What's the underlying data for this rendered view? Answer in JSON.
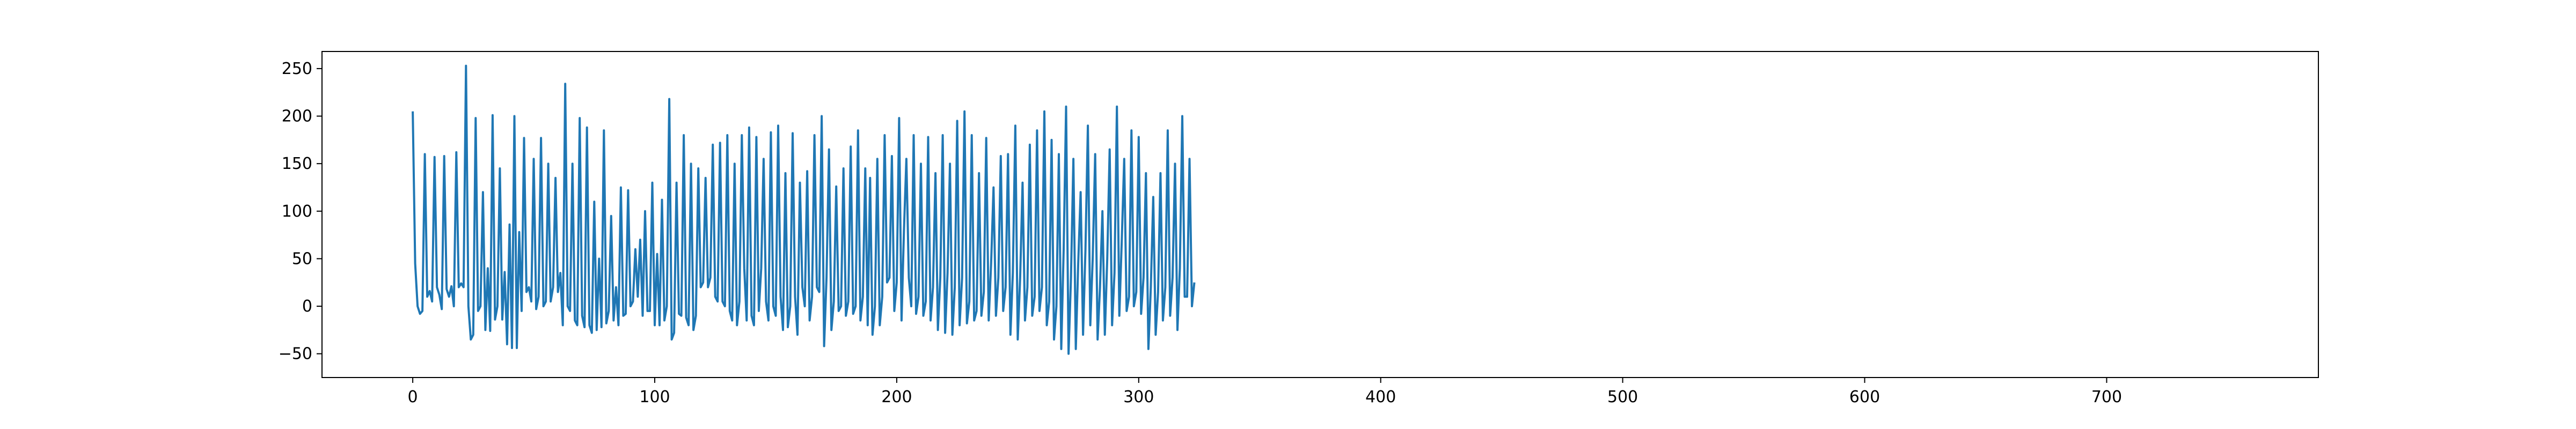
{
  "chart_data": {
    "type": "line",
    "title": "",
    "xlabel": "",
    "ylabel": "",
    "xlim": [
      -37.5,
      787.5
    ],
    "ylim": [
      -75,
      268
    ],
    "x_ticks": [
      0,
      100,
      200,
      300,
      400,
      500,
      600,
      700
    ],
    "y_ticks": [
      -50,
      0,
      50,
      100,
      150,
      200,
      250
    ],
    "x_tick_labels": [
      "0",
      "100",
      "200",
      "300",
      "400",
      "500",
      "600",
      "700"
    ],
    "y_tick_labels": [
      "−50",
      "0",
      "50",
      "100",
      "150",
      "200",
      "250"
    ],
    "grid": false,
    "legend": "none",
    "series": [
      {
        "color": "#1f77b4",
        "points": [
          [
            0,
            205
          ],
          [
            1,
            45
          ],
          [
            2,
            0
          ],
          [
            3,
            -8
          ],
          [
            4,
            -5
          ],
          [
            5,
            160
          ],
          [
            6,
            10
          ],
          [
            7,
            16
          ],
          [
            8,
            5
          ],
          [
            9,
            157
          ],
          [
            10,
            20
          ],
          [
            11,
            12
          ],
          [
            12,
            -3
          ],
          [
            13,
            158
          ],
          [
            14,
            18
          ],
          [
            15,
            10
          ],
          [
            16,
            21
          ],
          [
            17,
            0
          ],
          [
            18,
            162
          ],
          [
            19,
            20
          ],
          [
            20,
            24
          ],
          [
            21,
            20
          ],
          [
            22,
            253
          ],
          [
            23,
            0
          ],
          [
            24,
            -35
          ],
          [
            25,
            -30
          ],
          [
            26,
            198
          ],
          [
            27,
            -5
          ],
          [
            28,
            0
          ],
          [
            29,
            120
          ],
          [
            30,
            -25
          ],
          [
            31,
            40
          ],
          [
            32,
            -26
          ],
          [
            33,
            201
          ],
          [
            34,
            -14
          ],
          [
            35,
            0
          ],
          [
            36,
            145
          ],
          [
            37,
            -14
          ],
          [
            38,
            36
          ],
          [
            39,
            -40
          ],
          [
            40,
            86
          ],
          [
            41,
            -44
          ],
          [
            42,
            200
          ],
          [
            43,
            -44
          ],
          [
            44,
            78
          ],
          [
            45,
            -5
          ],
          [
            46,
            177
          ],
          [
            47,
            15
          ],
          [
            48,
            20
          ],
          [
            49,
            5
          ],
          [
            50,
            155
          ],
          [
            51,
            -3
          ],
          [
            52,
            10
          ],
          [
            53,
            177
          ],
          [
            54,
            0
          ],
          [
            55,
            5
          ],
          [
            56,
            150
          ],
          [
            57,
            5
          ],
          [
            58,
            20
          ],
          [
            59,
            135
          ],
          [
            60,
            15
          ],
          [
            61,
            35
          ],
          [
            62,
            -20
          ],
          [
            63,
            234
          ],
          [
            64,
            0
          ],
          [
            65,
            -5
          ],
          [
            66,
            150
          ],
          [
            67,
            -15
          ],
          [
            68,
            -20
          ],
          [
            69,
            198
          ],
          [
            70,
            -10
          ],
          [
            71,
            -22
          ],
          [
            72,
            188
          ],
          [
            73,
            -20
          ],
          [
            74,
            -28
          ],
          [
            75,
            110
          ],
          [
            76,
            -25
          ],
          [
            77,
            50
          ],
          [
            78,
            -22
          ],
          [
            79,
            185
          ],
          [
            80,
            -18
          ],
          [
            81,
            -5
          ],
          [
            82,
            95
          ],
          [
            83,
            -15
          ],
          [
            84,
            20
          ],
          [
            85,
            -20
          ],
          [
            86,
            125
          ],
          [
            87,
            -10
          ],
          [
            88,
            -8
          ],
          [
            89,
            122
          ],
          [
            90,
            0
          ],
          [
            91,
            5
          ],
          [
            92,
            60
          ],
          [
            93,
            10
          ],
          [
            94,
            70
          ],
          [
            95,
            -10
          ],
          [
            96,
            100
          ],
          [
            97,
            -5
          ],
          [
            98,
            -5
          ],
          [
            99,
            130
          ],
          [
            100,
            -20
          ],
          [
            101,
            55
          ],
          [
            102,
            -20
          ],
          [
            103,
            112
          ],
          [
            104,
            -15
          ],
          [
            105,
            0
          ],
          [
            106,
            218
          ],
          [
            107,
            -35
          ],
          [
            108,
            -28
          ],
          [
            109,
            130
          ],
          [
            110,
            -8
          ],
          [
            111,
            -10
          ],
          [
            112,
            180
          ],
          [
            113,
            -12
          ],
          [
            114,
            -20
          ],
          [
            115,
            150
          ],
          [
            116,
            -25
          ],
          [
            117,
            -10
          ],
          [
            118,
            145
          ],
          [
            119,
            20
          ],
          [
            120,
            25
          ],
          [
            121,
            135
          ],
          [
            122,
            20
          ],
          [
            123,
            30
          ],
          [
            124,
            170
          ],
          [
            125,
            10
          ],
          [
            126,
            5
          ],
          [
            127,
            172
          ],
          [
            128,
            5
          ],
          [
            129,
            0
          ],
          [
            130,
            180
          ],
          [
            131,
            -5
          ],
          [
            132,
            -15
          ],
          [
            133,
            150
          ],
          [
            134,
            -20
          ],
          [
            135,
            5
          ],
          [
            136,
            180
          ],
          [
            137,
            40
          ],
          [
            138,
            -15
          ],
          [
            139,
            188
          ],
          [
            140,
            -10
          ],
          [
            141,
            -20
          ],
          [
            142,
            178
          ],
          [
            143,
            -5
          ],
          [
            144,
            40
          ],
          [
            145,
            155
          ],
          [
            146,
            5
          ],
          [
            147,
            -15
          ],
          [
            148,
            183
          ],
          [
            149,
            0
          ],
          [
            150,
            -10
          ],
          [
            151,
            190
          ],
          [
            152,
            10
          ],
          [
            153,
            -25
          ],
          [
            154,
            140
          ],
          [
            155,
            -22
          ],
          [
            156,
            0
          ],
          [
            157,
            182
          ],
          [
            158,
            10
          ],
          [
            159,
            -30
          ],
          [
            160,
            130
          ],
          [
            161,
            20
          ],
          [
            162,
            0
          ],
          [
            163,
            142
          ],
          [
            164,
            -15
          ],
          [
            165,
            10
          ],
          [
            166,
            180
          ],
          [
            167,
            20
          ],
          [
            168,
            15
          ],
          [
            169,
            200
          ],
          [
            170,
            -42
          ],
          [
            171,
            30
          ],
          [
            172,
            165
          ],
          [
            173,
            -25
          ],
          [
            174,
            5
          ],
          [
            175,
            126
          ],
          [
            176,
            -5
          ],
          [
            177,
            0
          ],
          [
            178,
            145
          ],
          [
            179,
            -10
          ],
          [
            180,
            5
          ],
          [
            181,
            168
          ],
          [
            182,
            -8
          ],
          [
            183,
            0
          ],
          [
            184,
            185
          ],
          [
            185,
            -15
          ],
          [
            186,
            10
          ],
          [
            187,
            145
          ],
          [
            188,
            -20
          ],
          [
            189,
            135
          ],
          [
            190,
            -30
          ],
          [
            191,
            0
          ],
          [
            192,
            155
          ],
          [
            193,
            -20
          ],
          [
            194,
            10
          ],
          [
            195,
            180
          ],
          [
            196,
            25
          ],
          [
            197,
            30
          ],
          [
            198,
            158
          ],
          [
            199,
            -5
          ],
          [
            200,
            25
          ],
          [
            201,
            198
          ],
          [
            202,
            -15
          ],
          [
            203,
            80
          ],
          [
            204,
            155
          ],
          [
            205,
            30
          ],
          [
            206,
            0
          ],
          [
            207,
            180
          ],
          [
            208,
            -8
          ],
          [
            209,
            10
          ],
          [
            210,
            150
          ],
          [
            211,
            -10
          ],
          [
            212,
            5
          ],
          [
            213,
            178
          ],
          [
            214,
            -15
          ],
          [
            215,
            20
          ],
          [
            216,
            140
          ],
          [
            217,
            -25
          ],
          [
            218,
            30
          ],
          [
            219,
            180
          ],
          [
            220,
            -28
          ],
          [
            221,
            35
          ],
          [
            222,
            150
          ],
          [
            223,
            -30
          ],
          [
            224,
            20
          ],
          [
            225,
            195
          ],
          [
            226,
            -20
          ],
          [
            227,
            30
          ],
          [
            228,
            205
          ],
          [
            229,
            -18
          ],
          [
            230,
            5
          ],
          [
            231,
            180
          ],
          [
            232,
            -15
          ],
          [
            233,
            -5
          ],
          [
            234,
            140
          ],
          [
            235,
            -10
          ],
          [
            236,
            15
          ],
          [
            237,
            177
          ],
          [
            238,
            -15
          ],
          [
            239,
            45
          ],
          [
            240,
            125
          ],
          [
            241,
            -10
          ],
          [
            242,
            30
          ],
          [
            243,
            158
          ],
          [
            244,
            -5
          ],
          [
            245,
            20
          ],
          [
            246,
            160
          ],
          [
            247,
            -30
          ],
          [
            248,
            35
          ],
          [
            249,
            190
          ],
          [
            250,
            -35
          ],
          [
            251,
            30
          ],
          [
            252,
            130
          ],
          [
            253,
            -15
          ],
          [
            254,
            20
          ],
          [
            255,
            170
          ],
          [
            256,
            -10
          ],
          [
            257,
            10
          ],
          [
            258,
            185
          ],
          [
            259,
            -5
          ],
          [
            260,
            20
          ],
          [
            261,
            205
          ],
          [
            262,
            -20
          ],
          [
            263,
            5
          ],
          [
            264,
            175
          ],
          [
            265,
            -35
          ],
          [
            266,
            0
          ],
          [
            267,
            160
          ],
          [
            268,
            -45
          ],
          [
            269,
            60
          ],
          [
            270,
            210
          ],
          [
            271,
            -50
          ],
          [
            272,
            30
          ],
          [
            273,
            155
          ],
          [
            274,
            -45
          ],
          [
            275,
            45
          ],
          [
            276,
            120
          ],
          [
            277,
            -30
          ],
          [
            278,
            60
          ],
          [
            279,
            190
          ],
          [
            280,
            -20
          ],
          [
            281,
            50
          ],
          [
            282,
            160
          ],
          [
            283,
            -35
          ],
          [
            284,
            20
          ],
          [
            285,
            100
          ],
          [
            286,
            -30
          ],
          [
            287,
            50
          ],
          [
            288,
            165
          ],
          [
            289,
            -20
          ],
          [
            290,
            35
          ],
          [
            291,
            210
          ],
          [
            292,
            -10
          ],
          [
            293,
            70
          ],
          [
            294,
            155
          ],
          [
            295,
            -5
          ],
          [
            296,
            10
          ],
          [
            297,
            185
          ],
          [
            298,
            0
          ],
          [
            299,
            15
          ],
          [
            300,
            178
          ],
          [
            301,
            -8
          ],
          [
            302,
            30
          ],
          [
            303,
            140
          ],
          [
            304,
            -45
          ],
          [
            305,
            20
          ],
          [
            306,
            115
          ],
          [
            307,
            -30
          ],
          [
            308,
            15
          ],
          [
            309,
            140
          ],
          [
            310,
            -15
          ],
          [
            311,
            20
          ],
          [
            312,
            185
          ],
          [
            313,
            -10
          ],
          [
            314,
            30
          ],
          [
            315,
            150
          ],
          [
            316,
            -25
          ],
          [
            317,
            40
          ],
          [
            318,
            200
          ],
          [
            319,
            10
          ],
          [
            320,
            10
          ],
          [
            321,
            155
          ],
          [
            322,
            0
          ],
          [
            323,
            25
          ]
        ]
      }
    ]
  }
}
